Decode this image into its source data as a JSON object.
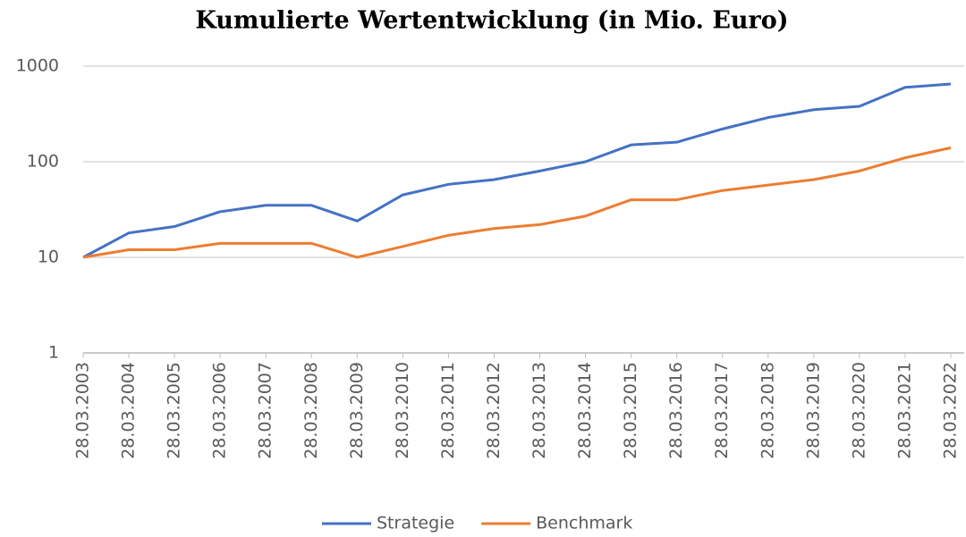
{
  "chart_data": {
    "type": "line",
    "title": "Kumulierte Wertentwicklung (in Mio. Euro)",
    "categories": [
      "28.03.2003",
      "28.03.2004",
      "28.03.2005",
      "28.03.2006",
      "28.03.2007",
      "28.03.2008",
      "28.03.2009",
      "28.03.2010",
      "28.03.2011",
      "28.03.2012",
      "28.03.2013",
      "28.03.2014",
      "28.03.2015",
      "28.03.2016",
      "28.03.2017",
      "28.03.2018",
      "28.03.2019",
      "28.03.2020",
      "28.03.2021",
      "28.03.2022"
    ],
    "series": [
      {
        "name": "Strategie",
        "color": "#4472c4",
        "values": [
          10,
          18,
          21,
          30,
          35,
          35,
          24,
          45,
          58,
          65,
          80,
          100,
          150,
          160,
          220,
          290,
          350,
          380,
          600,
          650
        ]
      },
      {
        "name": "Benchmark",
        "color": "#ed7d31",
        "values": [
          10,
          12,
          12,
          14,
          14,
          14,
          10,
          13,
          17,
          20,
          22,
          27,
          40,
          40,
          50,
          57,
          65,
          80,
          110,
          140
        ]
      }
    ],
    "ylim": [
      1,
      1000
    ],
    "yticks": [
      1,
      10,
      100,
      1000
    ],
    "log_scale": true,
    "grid": true,
    "legend": "bottom"
  }
}
